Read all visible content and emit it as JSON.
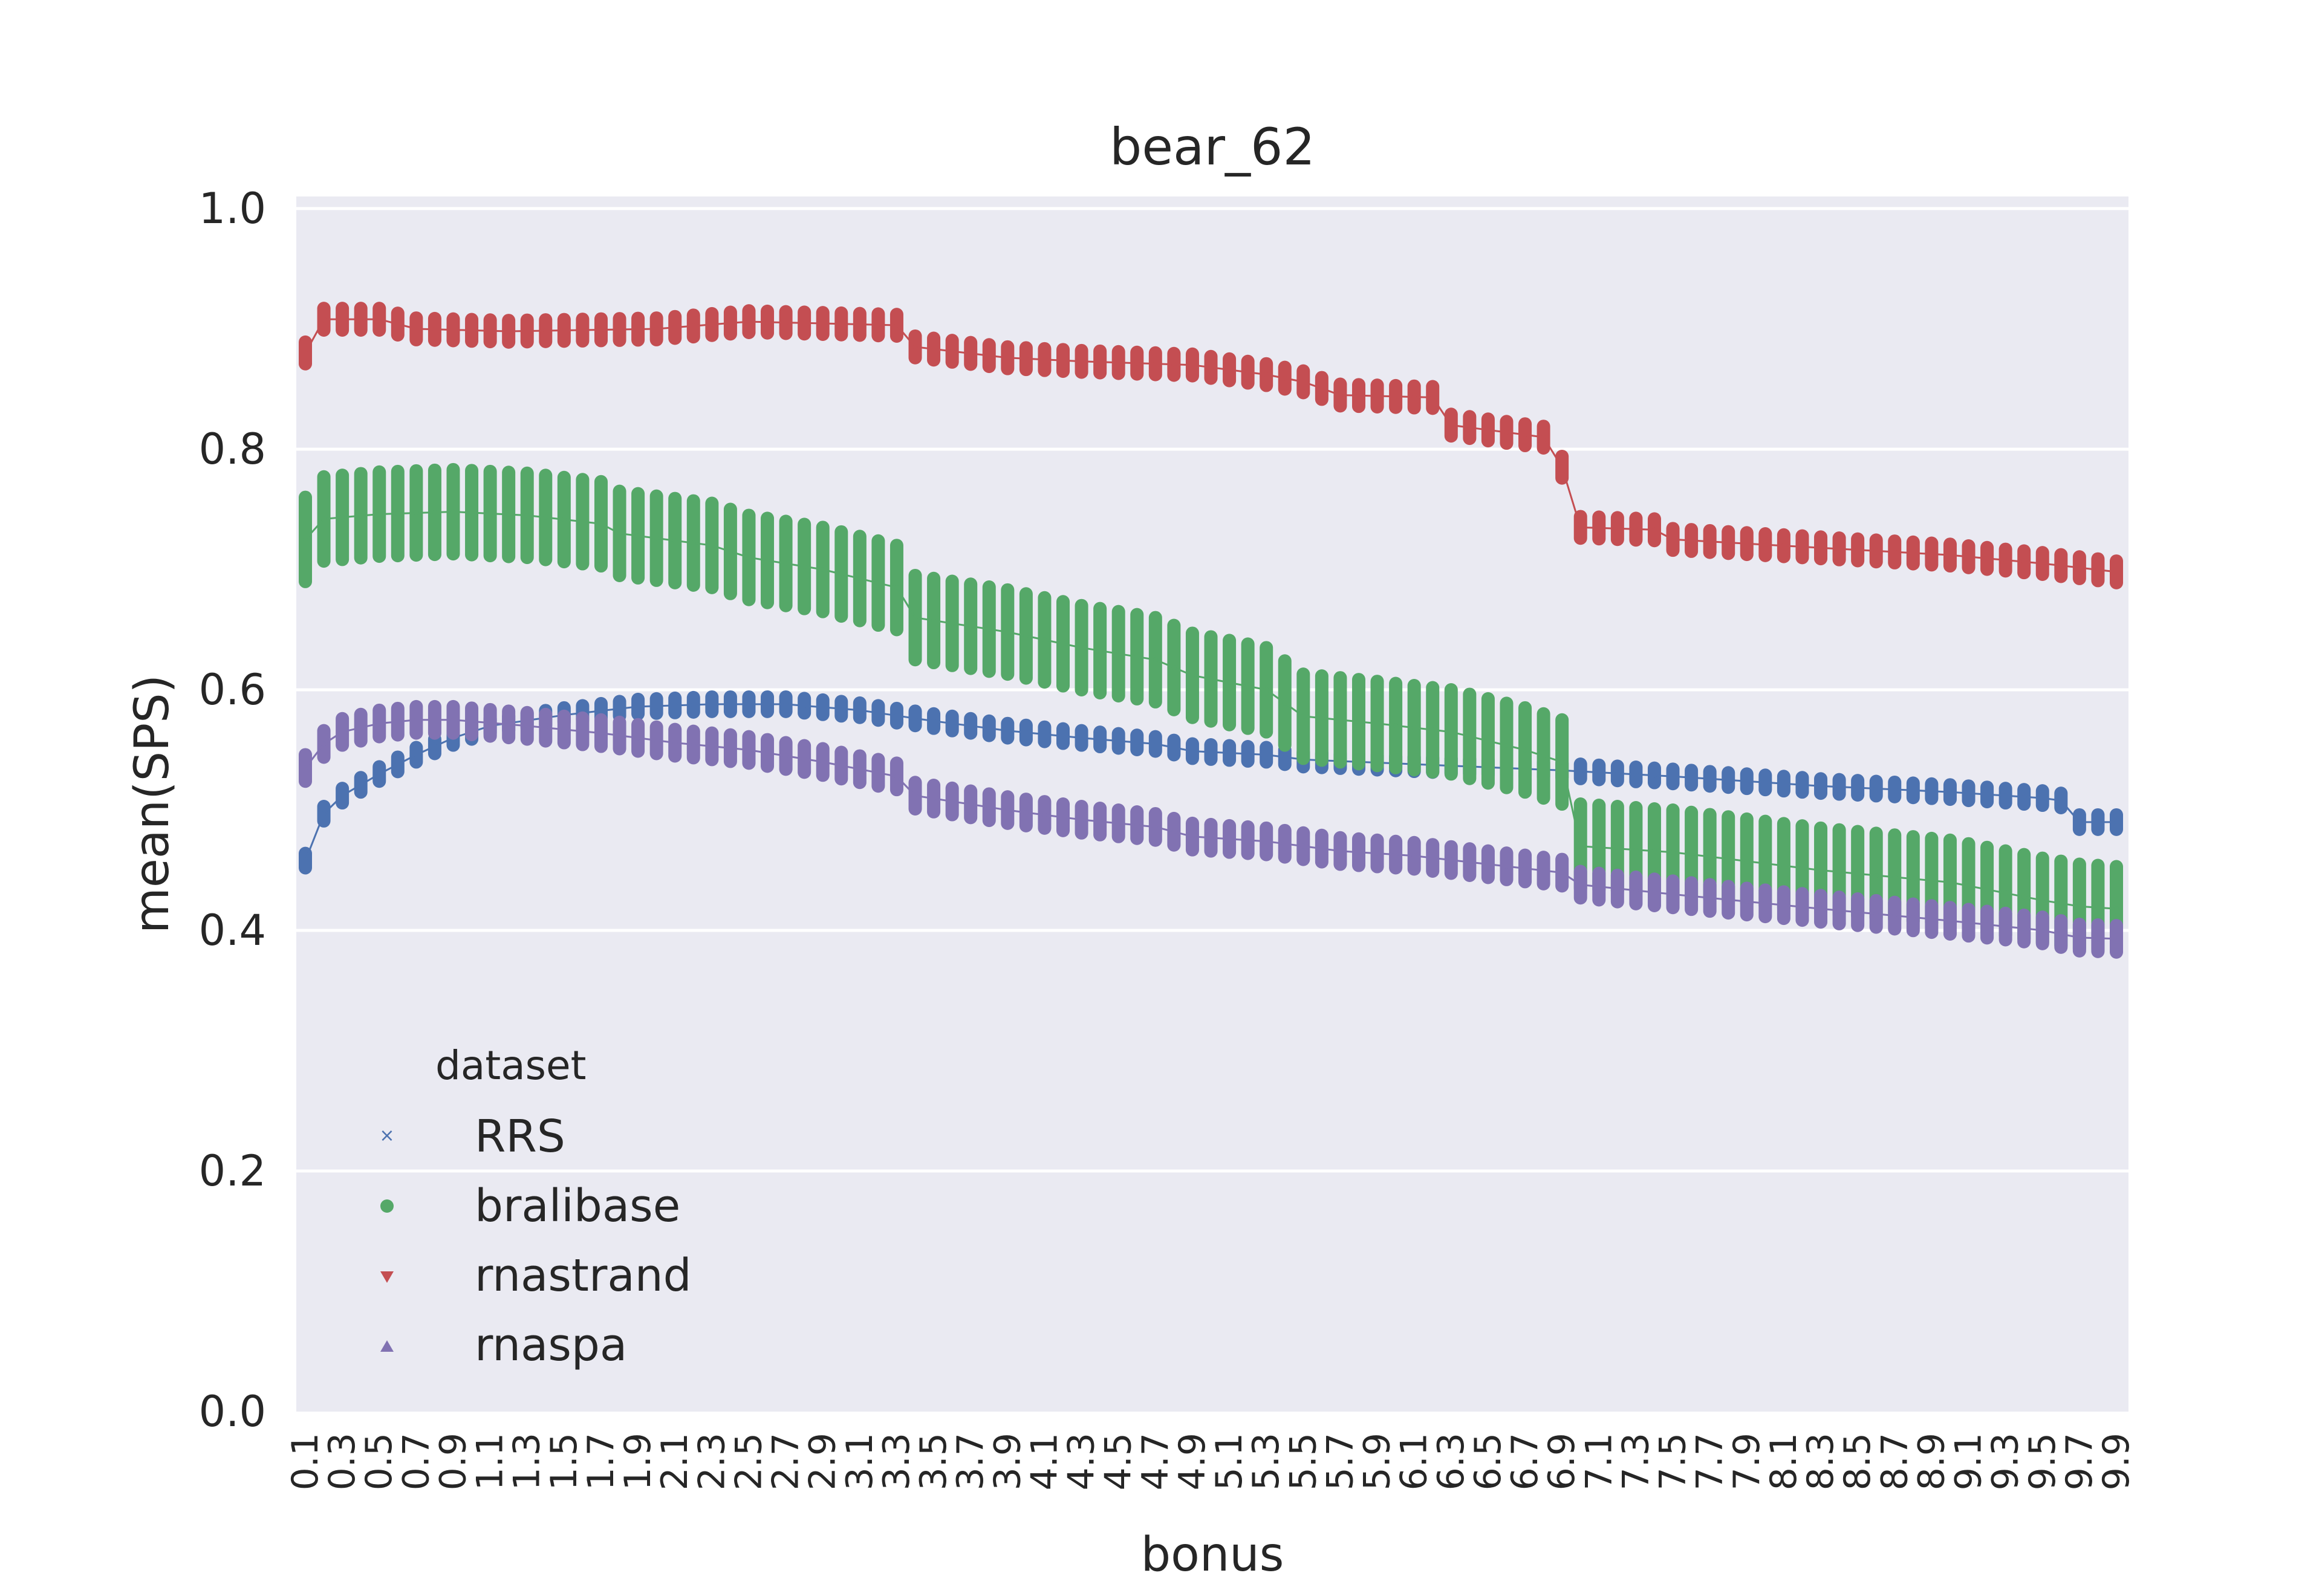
{
  "chart_data": {
    "type": "line",
    "title": "bear_62",
    "xlabel": "bonus",
    "ylabel": "mean(SPS)",
    "ylim": [
      0.0,
      1.0
    ],
    "yticks": [
      "0.0",
      "0.2",
      "0.4",
      "0.6",
      "0.8",
      "1.0"
    ],
    "grid": true,
    "legend": {
      "title": "dataset",
      "placement": "lower-left"
    },
    "categories": [
      "0.1",
      "0.2",
      "0.3",
      "0.4",
      "0.5",
      "0.6",
      "0.7",
      "0.8",
      "0.9",
      "1.0",
      "1.1",
      "1.2",
      "1.3",
      "1.4",
      "1.5",
      "1.6",
      "1.7",
      "1.8",
      "1.9",
      "2.0",
      "2.1",
      "2.2",
      "2.3",
      "2.4",
      "2.5",
      "2.6",
      "2.7",
      "2.8",
      "2.9",
      "3.0",
      "3.1",
      "3.2",
      "3.3",
      "3.4",
      "3.5",
      "3.6",
      "3.7",
      "3.8",
      "3.9",
      "4.0",
      "4.1",
      "4.2",
      "4.3",
      "4.4",
      "4.5",
      "4.6",
      "4.7",
      "4.8",
      "4.9",
      "5.0",
      "5.1",
      "5.2",
      "5.3",
      "5.4",
      "5.5",
      "5.6",
      "5.7",
      "5.8",
      "5.9",
      "6.0",
      "6.1",
      "6.2",
      "6.3",
      "6.4",
      "6.5",
      "6.6",
      "6.7",
      "6.8",
      "6.9",
      "7.0",
      "7.1",
      "7.2",
      "7.3",
      "7.4",
      "7.5",
      "7.6",
      "7.7",
      "7.8",
      "7.9",
      "8.0",
      "8.1",
      "8.2",
      "8.3",
      "8.4",
      "8.5",
      "8.6",
      "8.7",
      "8.8",
      "8.9",
      "9.0",
      "9.1",
      "9.2",
      "9.3",
      "9.4",
      "9.5",
      "9.6",
      "9.7",
      "9.8",
      "9.9"
    ],
    "xtick_labels": [
      "0.1",
      "0.3",
      "0.5",
      "0.7",
      "0.9",
      "1.1",
      "1.3",
      "1.5",
      "1.7",
      "1.9",
      "2.1",
      "2.3",
      "2.5",
      "2.7",
      "2.9",
      "3.1",
      "3.3",
      "3.5",
      "3.7",
      "3.9",
      "4.1",
      "4.3",
      "4.5",
      "4.7",
      "4.9",
      "5.1",
      "5.3",
      "5.5",
      "5.7",
      "5.9",
      "6.1",
      "6.3",
      "6.5",
      "6.7",
      "6.9",
      "7.1",
      "7.3",
      "7.5",
      "7.7",
      "7.9",
      "8.1",
      "8.3",
      "8.5",
      "8.7",
      "8.9",
      "9.1",
      "9.3",
      "9.5",
      "9.7",
      "9.9"
    ],
    "series": [
      {
        "name": "RRS",
        "marker": "x",
        "color": "#4c72b0",
        "anchors": [
          [
            0.1,
            0.458
          ],
          [
            0.2,
            0.497
          ],
          [
            0.3,
            0.512
          ],
          [
            0.5,
            0.53
          ],
          [
            0.7,
            0.546
          ],
          [
            0.9,
            0.56
          ],
          [
            1.1,
            0.57
          ],
          [
            1.5,
            0.579
          ],
          [
            1.9,
            0.586
          ],
          [
            2.3,
            0.588
          ],
          [
            2.7,
            0.588
          ],
          [
            3.1,
            0.583
          ],
          [
            3.5,
            0.574
          ],
          [
            3.9,
            0.566
          ],
          [
            4.3,
            0.56
          ],
          [
            4.7,
            0.555
          ],
          [
            4.9,
            0.549
          ],
          [
            5.3,
            0.546
          ],
          [
            5.5,
            0.542
          ],
          [
            6.9,
            0.533
          ],
          [
            7.5,
            0.528
          ],
          [
            8.3,
            0.52
          ],
          [
            9.0,
            0.515
          ],
          [
            9.5,
            0.51
          ],
          [
            9.6,
            0.508
          ],
          [
            9.7,
            0.49
          ],
          [
            9.9,
            0.49
          ]
        ],
        "spread": 0.006
      },
      {
        "name": "bralibase",
        "marker": "o",
        "color": "#55a868",
        "anchors": [
          [
            0.1,
            0.725
          ],
          [
            0.2,
            0.742
          ],
          [
            0.5,
            0.746
          ],
          [
            0.9,
            0.748
          ],
          [
            1.3,
            0.745
          ],
          [
            1.7,
            0.738
          ],
          [
            1.8,
            0.73
          ],
          [
            2.3,
            0.72
          ],
          [
            2.5,
            0.71
          ],
          [
            2.9,
            0.7
          ],
          [
            3.3,
            0.685
          ],
          [
            3.4,
            0.66
          ],
          [
            3.9,
            0.648
          ],
          [
            4.3,
            0.635
          ],
          [
            4.7,
            0.625
          ],
          [
            4.9,
            0.612
          ],
          [
            5.3,
            0.6
          ],
          [
            5.5,
            0.578
          ],
          [
            5.9,
            0.572
          ],
          [
            6.3,
            0.565
          ],
          [
            6.7,
            0.55
          ],
          [
            6.9,
            0.54
          ],
          [
            7.0,
            0.47
          ],
          [
            7.5,
            0.465
          ],
          [
            8.3,
            0.45
          ],
          [
            9.0,
            0.44
          ],
          [
            9.5,
            0.425
          ],
          [
            9.7,
            0.42
          ],
          [
            9.9,
            0.418
          ]
        ],
        "spread": 0.035
      },
      {
        "name": "rnastrand",
        "marker": "v",
        "color": "#c44e52",
        "anchors": [
          [
            0.1,
            0.88
          ],
          [
            0.2,
            0.908
          ],
          [
            0.5,
            0.908
          ],
          [
            0.7,
            0.9
          ],
          [
            1.2,
            0.898
          ],
          [
            2.0,
            0.9
          ],
          [
            2.5,
            0.906
          ],
          [
            3.3,
            0.903
          ],
          [
            3.4,
            0.885
          ],
          [
            3.9,
            0.876
          ],
          [
            4.3,
            0.873
          ],
          [
            4.9,
            0.87
          ],
          [
            5.3,
            0.862
          ],
          [
            5.5,
            0.856
          ],
          [
            5.7,
            0.845
          ],
          [
            6.2,
            0.843
          ],
          [
            6.3,
            0.82
          ],
          [
            6.8,
            0.81
          ],
          [
            6.9,
            0.785
          ],
          [
            7.0,
            0.735
          ],
          [
            7.4,
            0.733
          ],
          [
            7.5,
            0.725
          ],
          [
            8.3,
            0.718
          ],
          [
            9.0,
            0.712
          ],
          [
            9.5,
            0.705
          ],
          [
            9.9,
            0.698
          ]
        ],
        "spread": 0.009
      },
      {
        "name": "rnaspa",
        "marker": "^",
        "color": "#8172b2",
        "anchors": [
          [
            0.1,
            0.535
          ],
          [
            0.2,
            0.555
          ],
          [
            0.3,
            0.565
          ],
          [
            0.5,
            0.572
          ],
          [
            0.7,
            0.575
          ],
          [
            0.9,
            0.575
          ],
          [
            1.3,
            0.57
          ],
          [
            1.7,
            0.564
          ],
          [
            2.1,
            0.556
          ],
          [
            2.5,
            0.55
          ],
          [
            2.9,
            0.54
          ],
          [
            3.3,
            0.528
          ],
          [
            3.4,
            0.512
          ],
          [
            3.9,
            0.5
          ],
          [
            4.3,
            0.492
          ],
          [
            4.7,
            0.486
          ],
          [
            4.9,
            0.478
          ],
          [
            5.3,
            0.474
          ],
          [
            5.7,
            0.466
          ],
          [
            6.1,
            0.462
          ],
          [
            6.5,
            0.455
          ],
          [
            6.9,
            0.448
          ],
          [
            7.0,
            0.438
          ],
          [
            7.5,
            0.43
          ],
          [
            8.3,
            0.418
          ],
          [
            9.0,
            0.408
          ],
          [
            9.5,
            0.4
          ],
          [
            9.7,
            0.394
          ],
          [
            9.9,
            0.393
          ]
        ],
        "spread": 0.011
      }
    ]
  }
}
